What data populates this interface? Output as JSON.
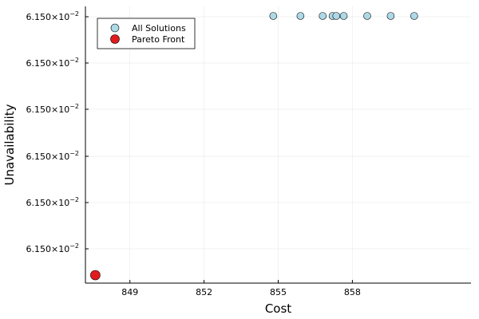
{
  "chart_data": {
    "type": "scatter",
    "xlabel": "Cost",
    "ylabel": "Unavailability",
    "x_ticks": [
      "849",
      "852",
      "855",
      "858"
    ],
    "x_tick_values": [
      849,
      852,
      855,
      858
    ],
    "xlim": [
      847.2,
      862.8
    ],
    "y_tick_mantissa": "6.150×10",
    "y_tick_exponent": "−2",
    "y_tick_count": 6,
    "grid": true,
    "legend_position": "top-left",
    "series": [
      {
        "name": "All Solutions",
        "color": "#add8e6",
        "points": [
          {
            "x": 854.8,
            "y": 1.0
          },
          {
            "x": 855.9,
            "y": 1.0
          },
          {
            "x": 856.8,
            "y": 1.0
          },
          {
            "x": 857.2,
            "y": 1.0
          },
          {
            "x": 857.35,
            "y": 1.0
          },
          {
            "x": 857.65,
            "y": 1.0
          },
          {
            "x": 858.6,
            "y": 1.0
          },
          {
            "x": 859.55,
            "y": 1.0
          },
          {
            "x": 860.5,
            "y": 1.0
          }
        ]
      },
      {
        "name": "Pareto Front",
        "color": "#e31a1c",
        "points": [
          {
            "x": 847.6,
            "y": 0.0
          }
        ]
      }
    ]
  }
}
